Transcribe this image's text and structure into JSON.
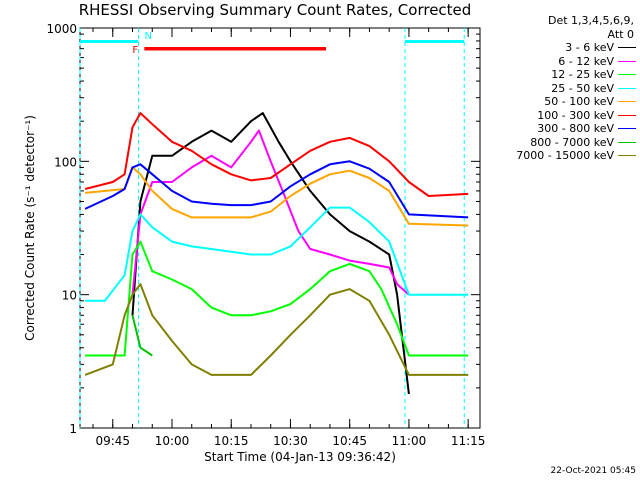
{
  "chart_data": {
    "type": "line",
    "title": "RHESSI Observing Summary Count Rates, Corrected",
    "xlabel": "Start Time (04-Jan-13 09:36:42)",
    "ylabel": "Corrected Count Rate (s⁻¹ detector⁻¹)",
    "x_ticks": [
      "09:45",
      "10:00",
      "10:15",
      "10:30",
      "10:45",
      "11:00",
      "11:15"
    ],
    "y_ticks": [
      "1",
      "10",
      "100",
      "1000"
    ],
    "y_scale": "log",
    "ylim": [
      1,
      1000
    ],
    "xlim": [
      "09:36:42",
      "11:18"
    ],
    "grid": false,
    "legend_header": [
      "Det 1,3,4,5,6,9,",
      "Att 0"
    ],
    "series": [
      {
        "name": "3 - 6 keV",
        "color": "#000000",
        "points": [
          [
            "09:50",
            7
          ],
          [
            "09:52",
            50
          ],
          [
            "09:55",
            110
          ],
          [
            "10:00",
            110
          ],
          [
            "10:05",
            140
          ],
          [
            "10:10",
            170
          ],
          [
            "10:15",
            140
          ],
          [
            "10:20",
            200
          ],
          [
            "10:23",
            230
          ],
          [
            "10:27",
            140
          ],
          [
            "10:30",
            100
          ],
          [
            "10:35",
            60
          ],
          [
            "10:40",
            40
          ],
          [
            "10:45",
            30
          ],
          [
            "10:50",
            25
          ],
          [
            "10:55",
            20
          ],
          [
            "10:57",
            10
          ],
          [
            "11:00",
            1.8
          ]
        ]
      },
      {
        "name": "6 - 12 keV",
        "color": "#ff00ff",
        "points": [
          [
            "09:50",
            10
          ],
          [
            "09:52",
            40
          ],
          [
            "09:55",
            70
          ],
          [
            "10:00",
            70
          ],
          [
            "10:05",
            90
          ],
          [
            "10:10",
            110
          ],
          [
            "10:15",
            90
          ],
          [
            "10:20",
            140
          ],
          [
            "10:22",
            170
          ],
          [
            "10:25",
            100
          ],
          [
            "10:28",
            60
          ],
          [
            "10:32",
            30
          ],
          [
            "10:35",
            22
          ],
          [
            "10:40",
            20
          ],
          [
            "10:45",
            18
          ],
          [
            "10:50",
            17
          ],
          [
            "10:55",
            16
          ],
          [
            "10:57",
            12
          ],
          [
            "11:00",
            10
          ]
        ]
      },
      {
        "name": "12 - 25 keV",
        "color": "#00ff00",
        "points": [
          [
            "09:38",
            3.5
          ],
          [
            "09:48",
            3.5
          ],
          [
            "09:50",
            20
          ],
          [
            "09:52",
            25
          ],
          [
            "09:55",
            15
          ],
          [
            "10:00",
            13
          ],
          [
            "10:05",
            11
          ],
          [
            "10:10",
            8
          ],
          [
            "10:15",
            7
          ],
          [
            "10:20",
            7
          ],
          [
            "10:25",
            7.5
          ],
          [
            "10:30",
            8.5
          ],
          [
            "10:35",
            11
          ],
          [
            "10:40",
            15
          ],
          [
            "10:45",
            17
          ],
          [
            "10:50",
            15
          ],
          [
            "10:53",
            11
          ],
          [
            "10:57",
            6
          ],
          [
            "11:00",
            3.5
          ],
          [
            "11:15",
            3.5
          ]
        ]
      },
      {
        "name": "25 - 50 keV",
        "color": "#00ffff",
        "points": [
          [
            "09:38",
            9
          ],
          [
            "09:43",
            9
          ],
          [
            "09:48",
            14
          ],
          [
            "09:50",
            30
          ],
          [
            "09:52",
            40
          ],
          [
            "09:55",
            32
          ],
          [
            "10:00",
            25
          ],
          [
            "10:05",
            23
          ],
          [
            "10:10",
            22
          ],
          [
            "10:15",
            21
          ],
          [
            "10:20",
            20
          ],
          [
            "10:25",
            20
          ],
          [
            "10:30",
            23
          ],
          [
            "10:35",
            32
          ],
          [
            "10:40",
            45
          ],
          [
            "10:45",
            45
          ],
          [
            "10:50",
            35
          ],
          [
            "10:55",
            25
          ],
          [
            "11:00",
            10
          ],
          [
            "11:15",
            10
          ]
        ]
      },
      {
        "name": "50 - 100 keV",
        "color": "#ffa500",
        "points": [
          [
            "09:38",
            58
          ],
          [
            "09:48",
            62
          ],
          [
            "09:50",
            90
          ],
          [
            "09:52",
            80
          ],
          [
            "09:55",
            60
          ],
          [
            "10:00",
            44
          ],
          [
            "10:05",
            38
          ],
          [
            "10:10",
            38
          ],
          [
            "10:15",
            38
          ],
          [
            "10:20",
            38
          ],
          [
            "10:25",
            42
          ],
          [
            "10:30",
            55
          ],
          [
            "10:35",
            68
          ],
          [
            "10:40",
            80
          ],
          [
            "10:45",
            85
          ],
          [
            "10:50",
            75
          ],
          [
            "10:55",
            60
          ],
          [
            "11:00",
            34
          ],
          [
            "11:15",
            33
          ]
        ]
      },
      {
        "name": "100 - 300 keV",
        "color": "#ff0000",
        "points": [
          [
            "09:38",
            62
          ],
          [
            "09:45",
            70
          ],
          [
            "09:48",
            80
          ],
          [
            "09:50",
            180
          ],
          [
            "09:52",
            230
          ],
          [
            "09:55",
            190
          ],
          [
            "10:00",
            140
          ],
          [
            "10:05",
            120
          ],
          [
            "10:10",
            95
          ],
          [
            "10:15",
            80
          ],
          [
            "10:20",
            72
          ],
          [
            "10:25",
            75
          ],
          [
            "10:30",
            95
          ],
          [
            "10:35",
            120
          ],
          [
            "10:40",
            140
          ],
          [
            "10:45",
            150
          ],
          [
            "10:50",
            130
          ],
          [
            "10:55",
            100
          ],
          [
            "11:00",
            70
          ],
          [
            "11:05",
            55
          ],
          [
            "11:15",
            57
          ]
        ]
      },
      {
        "name": "300 - 800 keV",
        "color": "#0000ff",
        "points": [
          [
            "09:38",
            44
          ],
          [
            "09:45",
            55
          ],
          [
            "09:48",
            62
          ],
          [
            "09:50",
            90
          ],
          [
            "09:52",
            95
          ],
          [
            "09:55",
            80
          ],
          [
            "10:00",
            60
          ],
          [
            "10:05",
            50
          ],
          [
            "10:10",
            48
          ],
          [
            "10:15",
            47
          ],
          [
            "10:20",
            47
          ],
          [
            "10:25",
            50
          ],
          [
            "10:30",
            65
          ],
          [
            "10:35",
            80
          ],
          [
            "10:40",
            95
          ],
          [
            "10:45",
            100
          ],
          [
            "10:50",
            88
          ],
          [
            "10:55",
            70
          ],
          [
            "11:00",
            40
          ],
          [
            "11:15",
            38
          ]
        ]
      },
      {
        "name": "800 - 7000 keV",
        "color": "#00c000",
        "points": [
          [
            "09:50",
            7
          ],
          [
            "09:52",
            4
          ],
          [
            "09:55",
            3.5
          ]
        ]
      },
      {
        "name": "7000 - 15000 keV",
        "color": "#808000",
        "points": [
          [
            "09:38",
            2.5
          ],
          [
            "09:45",
            3
          ],
          [
            "09:48",
            7
          ],
          [
            "09:50",
            10
          ],
          [
            "09:52",
            12
          ],
          [
            "09:55",
            7
          ],
          [
            "10:00",
            4.5
          ],
          [
            "10:05",
            3
          ],
          [
            "10:10",
            2.5
          ],
          [
            "10:15",
            2.5
          ],
          [
            "10:20",
            2.5
          ],
          [
            "10:25",
            3.5
          ],
          [
            "10:30",
            5
          ],
          [
            "10:35",
            7
          ],
          [
            "10:40",
            10
          ],
          [
            "10:45",
            11
          ],
          [
            "10:50",
            9
          ],
          [
            "10:55",
            5
          ],
          [
            "11:00",
            2.5
          ],
          [
            "11:15",
            2.5
          ]
        ]
      }
    ],
    "annotations": {
      "night_label": "N",
      "flare_label": "F",
      "night_intervals": [
        [
          "09:36:42",
          "09:51:30"
        ],
        [
          "10:59",
          "11:14"
        ]
      ],
      "flare_interval": [
        "09:53",
        "10:39"
      ],
      "night_color": "#00ffff",
      "flare_color": "#ff0000"
    },
    "timestamp": "22-Oct-2021 05:45"
  }
}
